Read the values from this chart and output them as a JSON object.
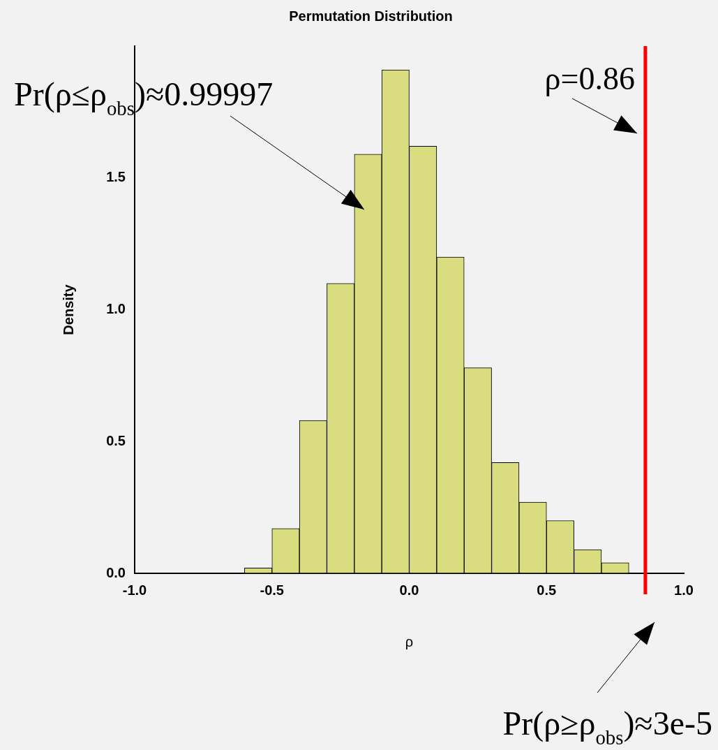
{
  "chart_data": {
    "type": "histogram",
    "title": "Permutation Distribution",
    "xlabel": "ρ",
    "ylabel": "Density",
    "bins": [
      -0.6,
      -0.5,
      -0.4,
      -0.3,
      -0.2,
      -0.1,
      0,
      0.1,
      0.2,
      0.3,
      0.4,
      0.5,
      0.6,
      0.7,
      0.8,
      0.9
    ],
    "values": [
      0.02,
      0.17,
      0.58,
      1.1,
      1.59,
      1.91,
      1.62,
      1.2,
      0.78,
      0.42,
      0.27,
      0.2,
      0.09,
      0.04,
      0
    ],
    "color": "#d9dc7f",
    "xlim": [
      -1,
      1
    ],
    "xticks": [
      {
        "value": -1,
        "label": "-1.0"
      },
      {
        "value": -0.5,
        "label": "-0.5"
      },
      {
        "value": 0,
        "label": "0.0"
      },
      {
        "value": 0.5,
        "label": "0.5"
      },
      {
        "value": 1,
        "label": "1.0"
      }
    ],
    "ylim": [
      0,
      2
    ],
    "yticks": [
      {
        "value": 0,
        "label": "0.0"
      },
      {
        "value": 0.5,
        "label": "0.5"
      },
      {
        "value": 1,
        "label": "1.0"
      },
      {
        "value": 1.5,
        "label": "1.5"
      }
    ],
    "grid": false,
    "legend": false,
    "ref_lines": [
      {
        "axis": "x",
        "value": 0.86,
        "label": "ρ=0.86",
        "color": "#ff0000"
      }
    ],
    "annotations": [
      "Pr(ρ≤ρ$_{obs}$)≈0.99997",
      "Pr(ρ≥ρ$_{obs}$)≈3e-5"
    ]
  }
}
